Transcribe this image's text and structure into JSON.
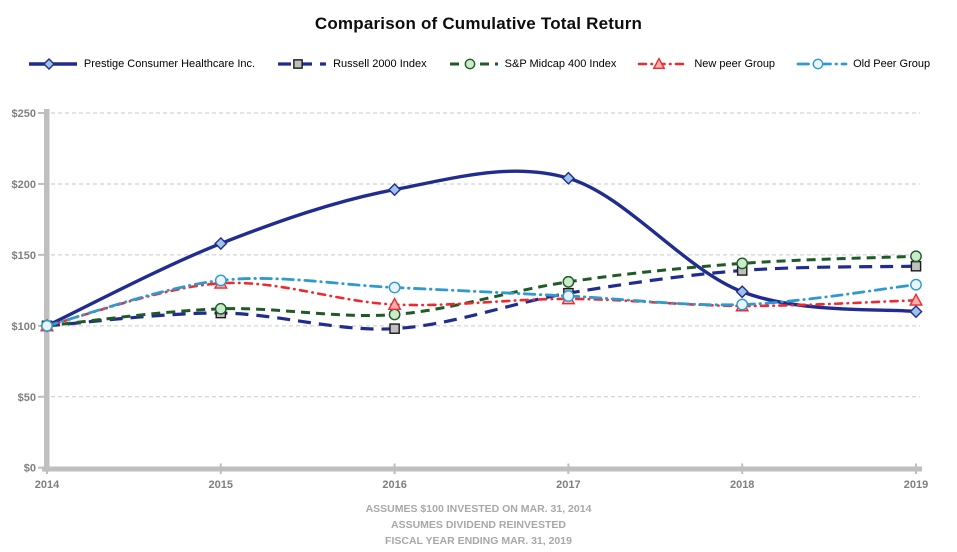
{
  "chart_data": {
    "type": "line",
    "title": "Comparison of Cumulative Total Return",
    "x_categories": [
      "2014",
      "2015",
      "2016",
      "2017",
      "2018",
      "2019"
    ],
    "y_tick_labels": [
      "$0",
      "$50",
      "$100",
      "$150",
      "$200",
      "$250"
    ],
    "y_tick_values": [
      0,
      50,
      100,
      150,
      200,
      250
    ],
    "ylim": [
      0,
      250
    ],
    "grid": "horizontal-dashed",
    "legend_position": "top",
    "line_style": "smoothed",
    "series": [
      {
        "name": "Prestige Consumer Healthcare Inc.",
        "values": [
          100,
          158,
          196,
          204,
          124,
          110
        ],
        "color": "#202c90",
        "dash": "solid",
        "marker": "diamond",
        "marker_fill": "#9dc3e6",
        "marker_stroke": "#202c90"
      },
      {
        "name": "Russell 2000 Index",
        "values": [
          100,
          109,
          98,
          123,
          139,
          142
        ],
        "color": "#202c90",
        "dash": "long-dash",
        "marker": "square",
        "marker_fill": "#bfbfbf",
        "marker_stroke": "#1a1a1a"
      },
      {
        "name": "S&P Midcap 400 Index",
        "values": [
          100,
          112,
          108,
          131,
          144,
          149
        ],
        "color": "#1e5b26",
        "dash": "dash",
        "marker": "circle",
        "marker_fill": "#c9ebc9",
        "marker_stroke": "#1e5b26"
      },
      {
        "name": "New peer Group",
        "values": [
          100,
          130,
          115,
          119,
          114,
          118
        ],
        "color": "#ee2a2e",
        "dash": "dash-dot",
        "marker": "triangle",
        "marker_fill": "#f6adad",
        "marker_stroke": "#ee2a2e"
      },
      {
        "name": "Old Peer Group",
        "values": [
          100,
          132,
          127,
          121,
          115,
          129
        ],
        "color": "#2e9ad0",
        "dash": "long-dash-dot",
        "marker": "circle-open",
        "marker_fill": "#eaf4fb",
        "marker_stroke": "#2e9ad0"
      }
    ],
    "footnotes": [
      "ASSUMES $100 INVESTED ON MAR. 31, 2014",
      "ASSUMES DIVIDEND REINVESTED",
      "FISCAL YEAR ENDING MAR. 31, 2019"
    ],
    "axis_color": "#bfbfbf",
    "grid_color": "#c9c9c9",
    "tick_label_color": "#7f7f7f"
  }
}
